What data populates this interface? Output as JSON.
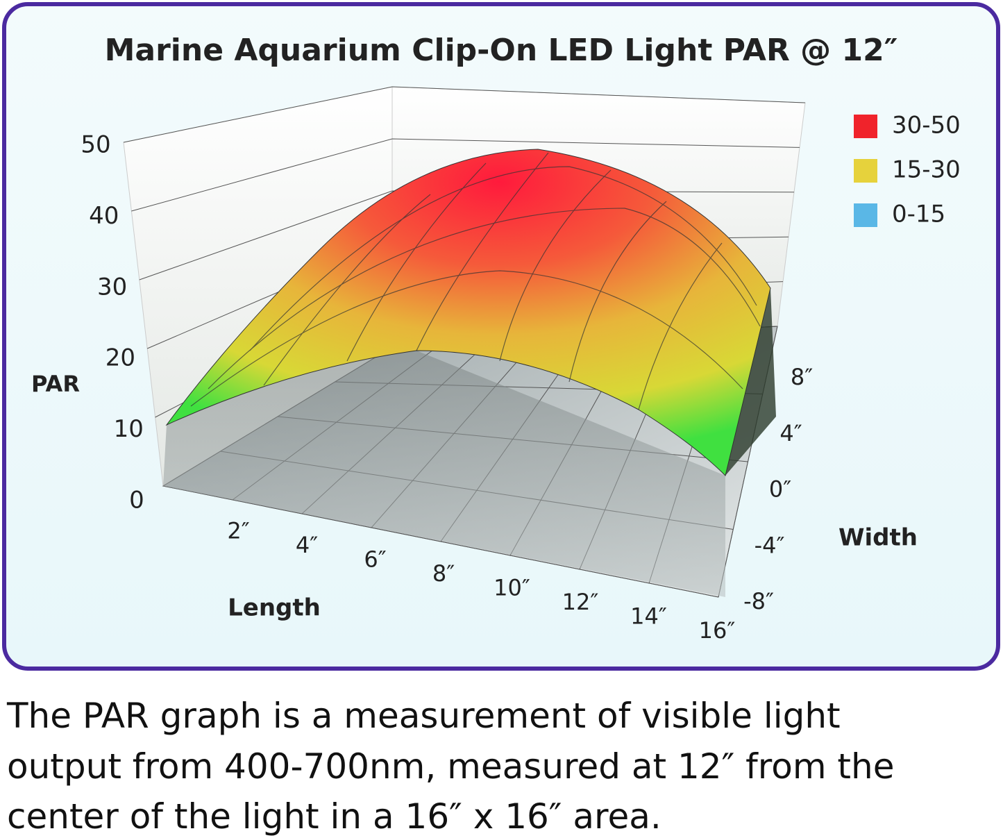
{
  "chart_data": {
    "type": "surface",
    "title": "Marine Aquarium Clip-On LED Light PAR @ 12″",
    "zlabel": "PAR",
    "xlabel": "Length",
    "ylabel": "Width",
    "zlim": [
      0,
      50
    ],
    "zticks": [
      0,
      10,
      20,
      30,
      40,
      50
    ],
    "xlim": [
      0,
      16
    ],
    "xticks": [
      {
        "value": 2,
        "label": "2″"
      },
      {
        "value": 4,
        "label": "4″"
      },
      {
        "value": 6,
        "label": "6″"
      },
      {
        "value": 8,
        "label": "8″"
      },
      {
        "value": 10,
        "label": "10″"
      },
      {
        "value": 12,
        "label": "12″"
      },
      {
        "value": 14,
        "label": "14″"
      },
      {
        "value": 16,
        "label": "16″"
      }
    ],
    "ylim": [
      -8,
      8
    ],
    "yticks": [
      {
        "value": -8,
        "label": "-8″"
      },
      {
        "value": -4,
        "label": "-4″"
      },
      {
        "value": 0,
        "label": "0″"
      },
      {
        "value": 4,
        "label": "4″"
      },
      {
        "value": 8,
        "label": "8″"
      }
    ],
    "legend": [
      {
        "label": "30-50",
        "color": "#f0232b"
      },
      {
        "label": "15-30",
        "color": "#e6d23c"
      },
      {
        "label": "0-15",
        "color": "#5ab7e6"
      }
    ],
    "grid": true
  },
  "caption_lines": [
    "The PAR graph is a measurement of visible light",
    "output from 400-700nm, measured at 12″ from the",
    "center of the light in a 16″ x 16″ area."
  ]
}
